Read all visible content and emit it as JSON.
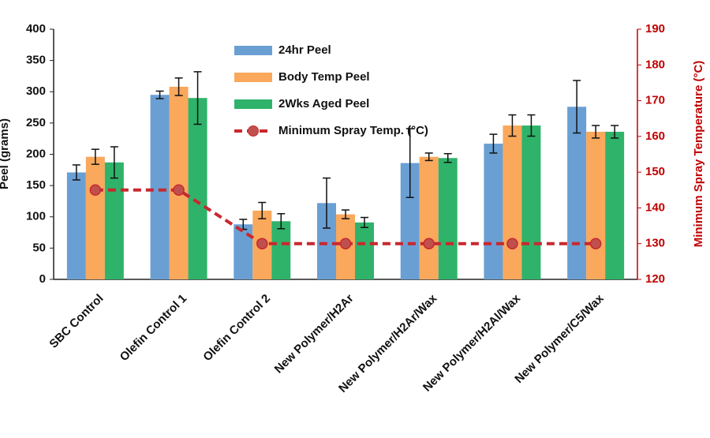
{
  "chart_data": {
    "type": "bar",
    "categories": [
      "SBC Control",
      "Olefin Control 1",
      "Olefin Control 2",
      "New Polymer/H2Ar",
      "New Polymer/H2Ar/Wax",
      "New Polymer/H2Al/Wax",
      "New Polymer/C5/Wax"
    ],
    "y_label": "Peel (grams)",
    "y2_label": "Minimum Spray Temperature (°C)",
    "ylim": [
      0,
      400
    ],
    "yticks": [
      0,
      50,
      100,
      150,
      200,
      250,
      300,
      350,
      400
    ],
    "y2lim": [
      120,
      190
    ],
    "y2ticks": [
      120,
      130,
      140,
      150,
      160,
      170,
      180,
      190
    ],
    "grid": false,
    "legend": "top-center",
    "series": [
      {
        "name": "24hr Peel",
        "type": "bar",
        "color": "#6a9fd4",
        "values": [
          171,
          295,
          88,
          122,
          186,
          217,
          276
        ],
        "errors": [
          12,
          6,
          8,
          40,
          55,
          15,
          42
        ]
      },
      {
        "name": "Body Temp Peel",
        "type": "bar",
        "color": "#f9a85c",
        "values": [
          196,
          308,
          110,
          104,
          196,
          246,
          236
        ],
        "errors": [
          12,
          14,
          13,
          7,
          6,
          17,
          10
        ]
      },
      {
        "name": "2Wks Aged Peel",
        "type": "bar",
        "color": "#2fb36a",
        "values": [
          187,
          290,
          93,
          91,
          194,
          246,
          236
        ],
        "errors": [
          25,
          42,
          12,
          8,
          7,
          17,
          10
        ]
      },
      {
        "name": "Minimum Spray Temp. (°C)",
        "type": "line",
        "axis": "y2",
        "color": "#c8282e",
        "values": [
          145,
          145,
          130,
          130,
          130,
          130,
          130
        ]
      }
    ]
  }
}
